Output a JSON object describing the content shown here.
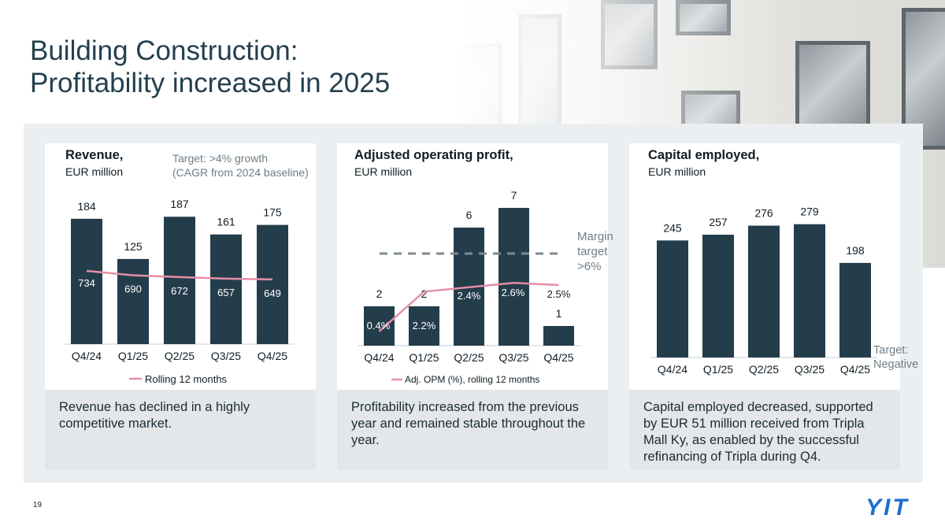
{
  "slide": {
    "title_line1": "Building Construction:",
    "title_line2": "Profitability increased in 2025",
    "page_number": "19",
    "logo_text": "YIT",
    "colors": {
      "bar": "#243d4b",
      "line": "#e48ea5",
      "target": "#7d8a93",
      "title": "#23404f"
    }
  },
  "revenue": {
    "title": "Revenue,",
    "subtitle": "EUR million",
    "target_line1": "Target: >4% growth",
    "target_line2": "(CAGR from 2024 baseline)",
    "legend": "Rolling 12 months",
    "note": "Revenue has declined in a highly competitive market."
  },
  "aop": {
    "title": "Adjusted operating profit,",
    "subtitle": "EUR million",
    "target_line1": "Margin",
    "target_line2": "target",
    "target_line3": ">6%",
    "legend": "Adj. OPM (%), rolling 12 months",
    "note": "Profitability increased from the previous year and remained stable throughout the year."
  },
  "capital": {
    "title": "Capital employed,",
    "subtitle": "EUR million",
    "target_line1": "Target:",
    "target_line2": "Negative",
    "note": "Capital employed decreased, supported by EUR 51 million received from Tripla Mall Ky, as enabled by the successful refinancing of Tripla during Q4."
  },
  "chart_data": [
    {
      "type": "bar",
      "title": "Revenue, EUR million",
      "categories": [
        "Q4/24",
        "Q1/25",
        "Q2/25",
        "Q3/25",
        "Q4/25"
      ],
      "series": [
        {
          "values": [
            184,
            125,
            187,
            161,
            175
          ]
        },
        {
          "name": "Rolling 12 months",
          "type": "line",
          "values": [
            734,
            690,
            672,
            657,
            649
          ]
        }
      ],
      "ylim": [
        0,
        200
      ]
    },
    {
      "type": "bar",
      "title": "Adjusted operating profit, EUR million",
      "categories": [
        "Q4/24",
        "Q1/25",
        "Q2/25",
        "Q3/25",
        "Q4/25"
      ],
      "series": [
        {
          "values": [
            2,
            2,
            6,
            7,
            1
          ]
        },
        {
          "name": "Adj. OPM (%), rolling 12 months",
          "type": "line",
          "values": [
            0.4,
            2.2,
            2.4,
            2.6,
            2.5
          ],
          "labels": [
            "0.4%",
            "2.2%",
            "2.4%",
            "2.6%",
            "2.5%"
          ]
        }
      ],
      "ylim": [
        0,
        8
      ],
      "target_margin_pct": 6
    },
    {
      "type": "bar",
      "title": "Capital employed, EUR million",
      "categories": [
        "Q4/24",
        "Q1/25",
        "Q2/25",
        "Q3/25",
        "Q4/25"
      ],
      "series": [
        {
          "values": [
            245,
            257,
            276,
            279,
            198
          ]
        }
      ],
      "ylim": [
        0,
        300
      ]
    }
  ]
}
